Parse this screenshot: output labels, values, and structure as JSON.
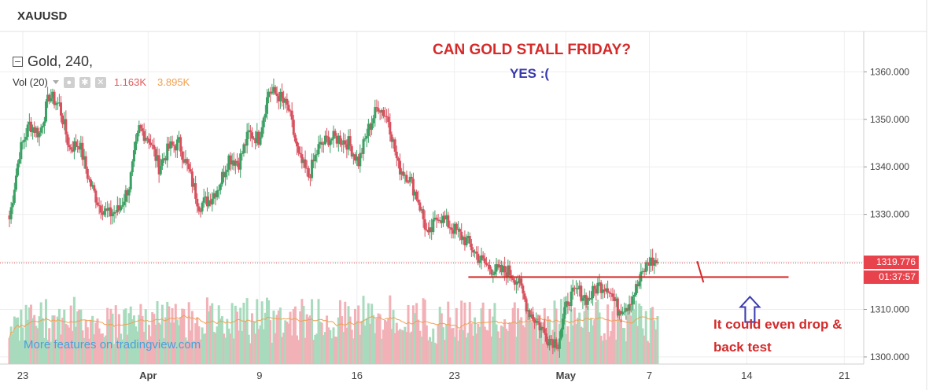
{
  "header": {
    "symbol": "XAUUSD",
    "study_title": "Gold, 240,",
    "vol_label": "Vol (20)",
    "vol_value_1": "1.163K",
    "vol_value_2": "3.895K"
  },
  "annotations": {
    "headline": "CAN GOLD STALL FRIDAY?",
    "subline": "YES  :(",
    "note_line1": "It could even drop &",
    "note_line2": "back test",
    "watermark": "More features on tradingview.com"
  },
  "price_badges": {
    "last_price": "1319.776",
    "countdown": "01:37:57"
  },
  "colors": {
    "up": "#3aa063",
    "down": "#d8505e",
    "up_vol": "#a8dbbd",
    "down_vol": "#f2b1b7",
    "annotation_red": "#d42a2a",
    "annotation_blue": "#3a3ab0"
  },
  "chart_data": {
    "type": "candlestick",
    "title": "Gold, 240,",
    "y_axis_ticks": [
      "1300.000",
      "1310.000",
      "1320.000",
      "1330.000",
      "1340.000",
      "1350.000",
      "1360.000"
    ],
    "x_axis_ticks": [
      "23",
      "Apr",
      "9",
      "16",
      "23",
      "May",
      "7",
      "14",
      "21"
    ],
    "ylim": [
      1298.5,
      1368.5
    ],
    "last_price": 1319.776,
    "support_level": 1316.8,
    "path": [
      1329,
      1343,
      1349,
      1347,
      1355,
      1353,
      1344,
      1345,
      1337,
      1332,
      1330,
      1331,
      1336,
      1348,
      1346,
      1340,
      1344,
      1345,
      1339,
      1332,
      1333,
      1336,
      1342,
      1341,
      1347,
      1346,
      1356,
      1355,
      1352,
      1342,
      1338,
      1344,
      1346,
      1346,
      1345,
      1341,
      1348,
      1353,
      1350,
      1340,
      1338,
      1333,
      1325,
      1330,
      1328,
      1326,
      1324,
      1321,
      1319,
      1318,
      1318,
      1316,
      1310,
      1307,
      1304,
      1303,
      1312,
      1314,
      1312,
      1315,
      1315,
      1310,
      1311,
      1315,
      1320,
      1320
    ],
    "annotations": {
      "support_line": {
        "start_date": "Apr 24",
        "end_date": "May 17",
        "y": 1316.8
      },
      "up_arrow": {
        "date": "May 14",
        "y": 1311
      },
      "red_tick": {
        "date": "May 11",
        "y": 1318
      }
    }
  }
}
